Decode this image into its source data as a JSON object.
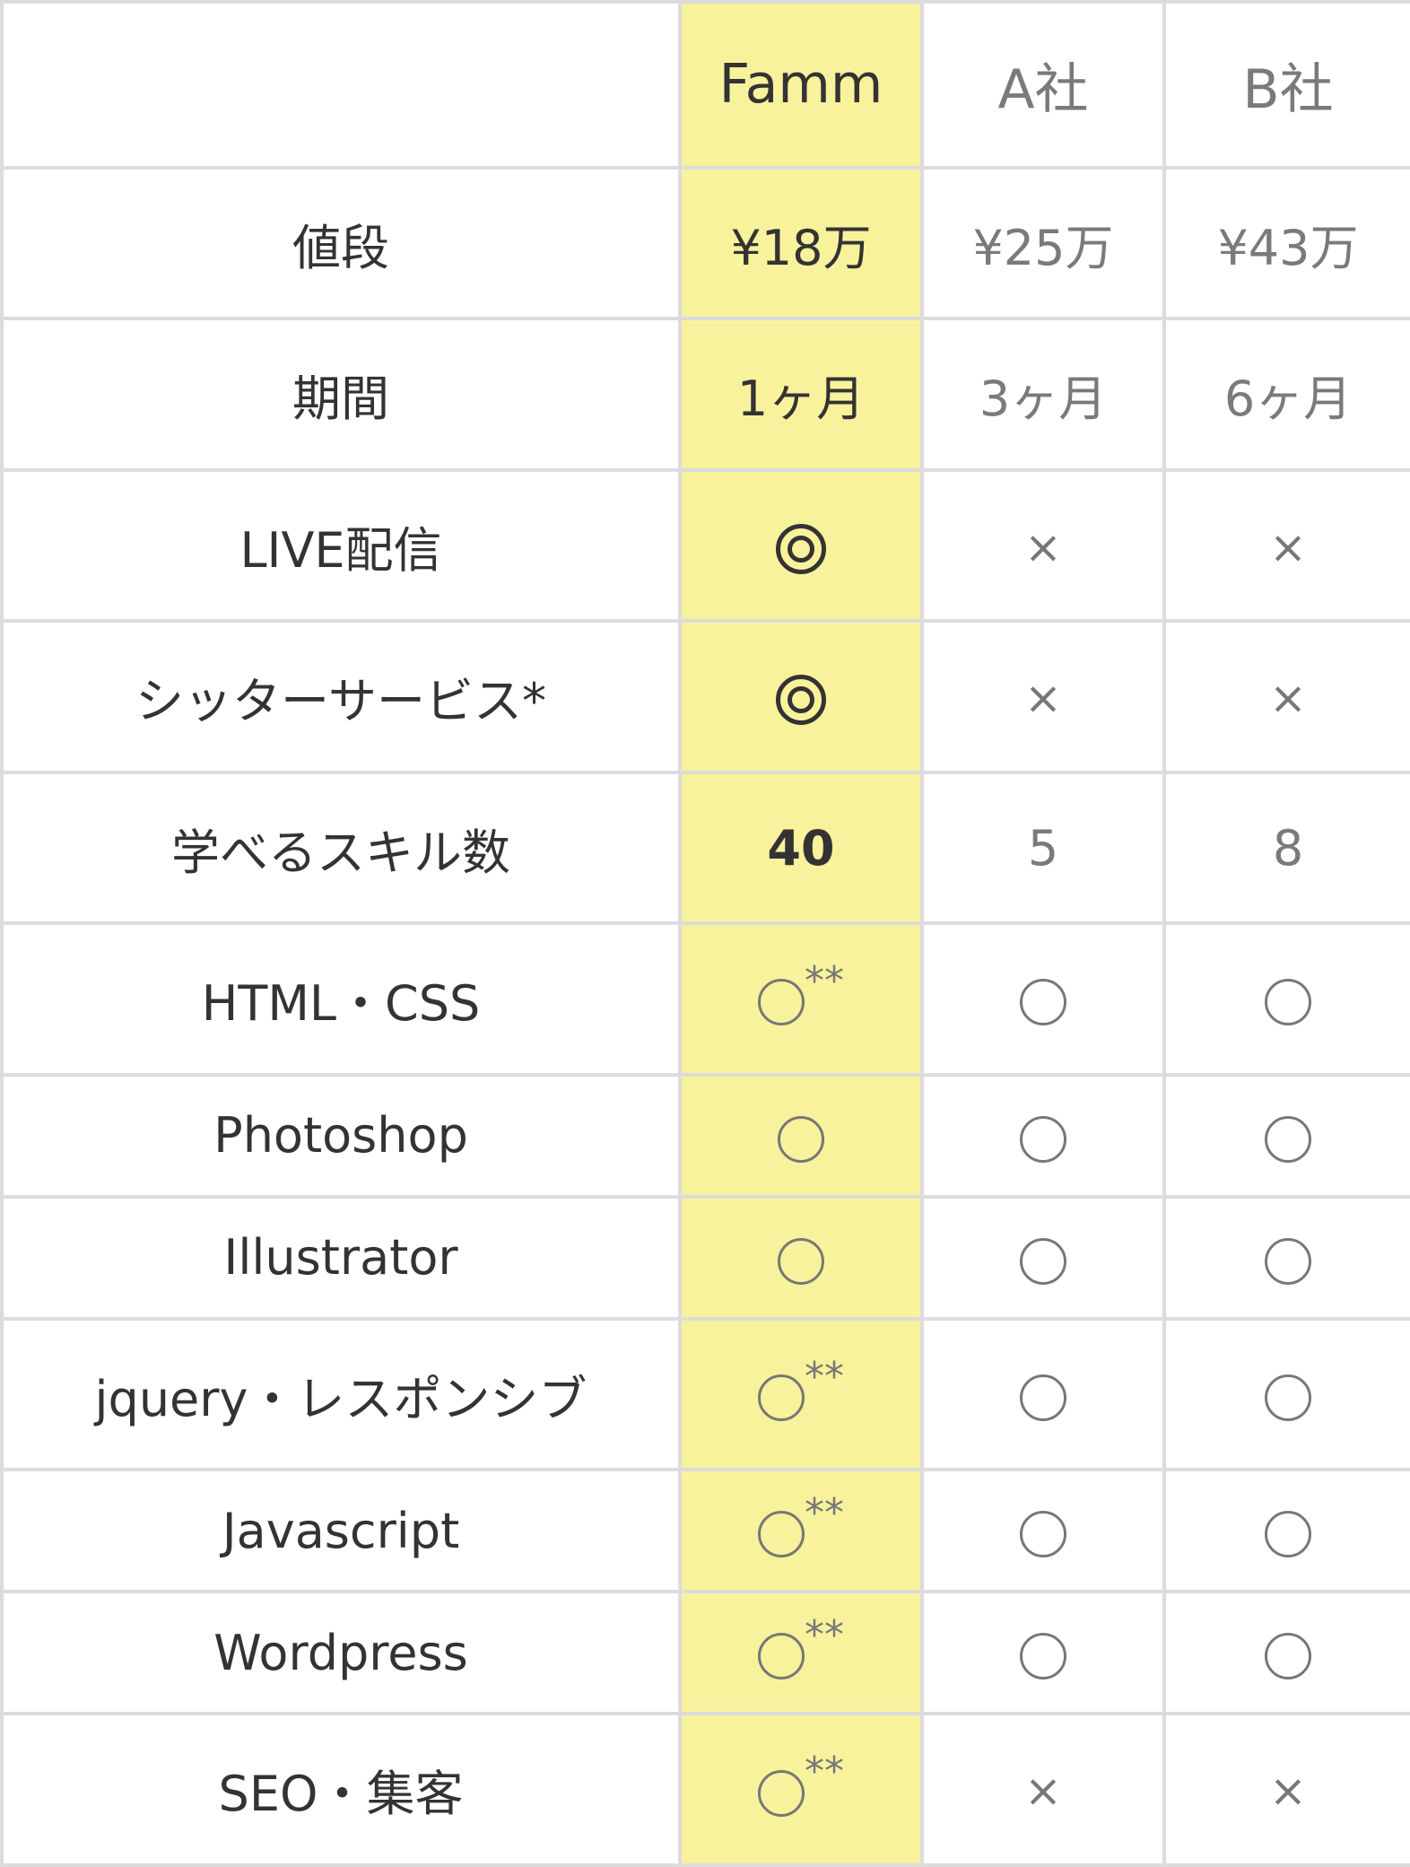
{
  "header": {
    "blank": "",
    "columns": [
      "Famm",
      "A社",
      "B社"
    ]
  },
  "rows": [
    {
      "label": "値段",
      "cells": [
        {
          "type": "text",
          "value": "¥18万"
        },
        {
          "type": "text",
          "value": "¥25万"
        },
        {
          "type": "text",
          "value": "¥43万"
        }
      ]
    },
    {
      "label": "期間",
      "cells": [
        {
          "type": "text",
          "value": "1ヶ月"
        },
        {
          "type": "text",
          "value": "3ヶ月"
        },
        {
          "type": "text",
          "value": "6ヶ月"
        }
      ]
    },
    {
      "label": "LIVE配信",
      "cells": [
        {
          "type": "double-circle"
        },
        {
          "type": "cross",
          "value": "×"
        },
        {
          "type": "cross",
          "value": "×"
        }
      ]
    },
    {
      "label": "シッターサービス*",
      "cells": [
        {
          "type": "double-circle"
        },
        {
          "type": "cross",
          "value": "×"
        },
        {
          "type": "cross",
          "value": "×"
        }
      ]
    },
    {
      "label": "学べるスキル数",
      "cells": [
        {
          "type": "bold",
          "value": "40"
        },
        {
          "type": "text",
          "value": "5"
        },
        {
          "type": "text",
          "value": "8"
        }
      ]
    },
    {
      "label": "HTML・CSS",
      "cells": [
        {
          "type": "circle",
          "note": "**"
        },
        {
          "type": "circle"
        },
        {
          "type": "circle"
        }
      ]
    },
    {
      "label": "Photoshop",
      "cells": [
        {
          "type": "circle"
        },
        {
          "type": "circle"
        },
        {
          "type": "circle"
        }
      ]
    },
    {
      "label": "Illustrator",
      "cells": [
        {
          "type": "circle"
        },
        {
          "type": "circle"
        },
        {
          "type": "circle"
        }
      ]
    },
    {
      "label": "jquery・レスポンシブ",
      "cells": [
        {
          "type": "circle",
          "note": "**"
        },
        {
          "type": "circle"
        },
        {
          "type": "circle"
        }
      ]
    },
    {
      "label": "Javascript",
      "cells": [
        {
          "type": "circle",
          "note": "**"
        },
        {
          "type": "circle"
        },
        {
          "type": "circle"
        }
      ]
    },
    {
      "label": "Wordpress",
      "cells": [
        {
          "type": "circle",
          "note": "**"
        },
        {
          "type": "circle"
        },
        {
          "type": "circle"
        }
      ]
    },
    {
      "label": "SEO・集客",
      "cells": [
        {
          "type": "circle",
          "note": "**"
        },
        {
          "type": "cross",
          "value": "×"
        },
        {
          "type": "cross",
          "value": "×"
        }
      ]
    }
  ],
  "colors": {
    "highlight": "#f8f29c",
    "border": "#dcdcdc",
    "text": "#333333",
    "muted": "#7a7a7a"
  }
}
